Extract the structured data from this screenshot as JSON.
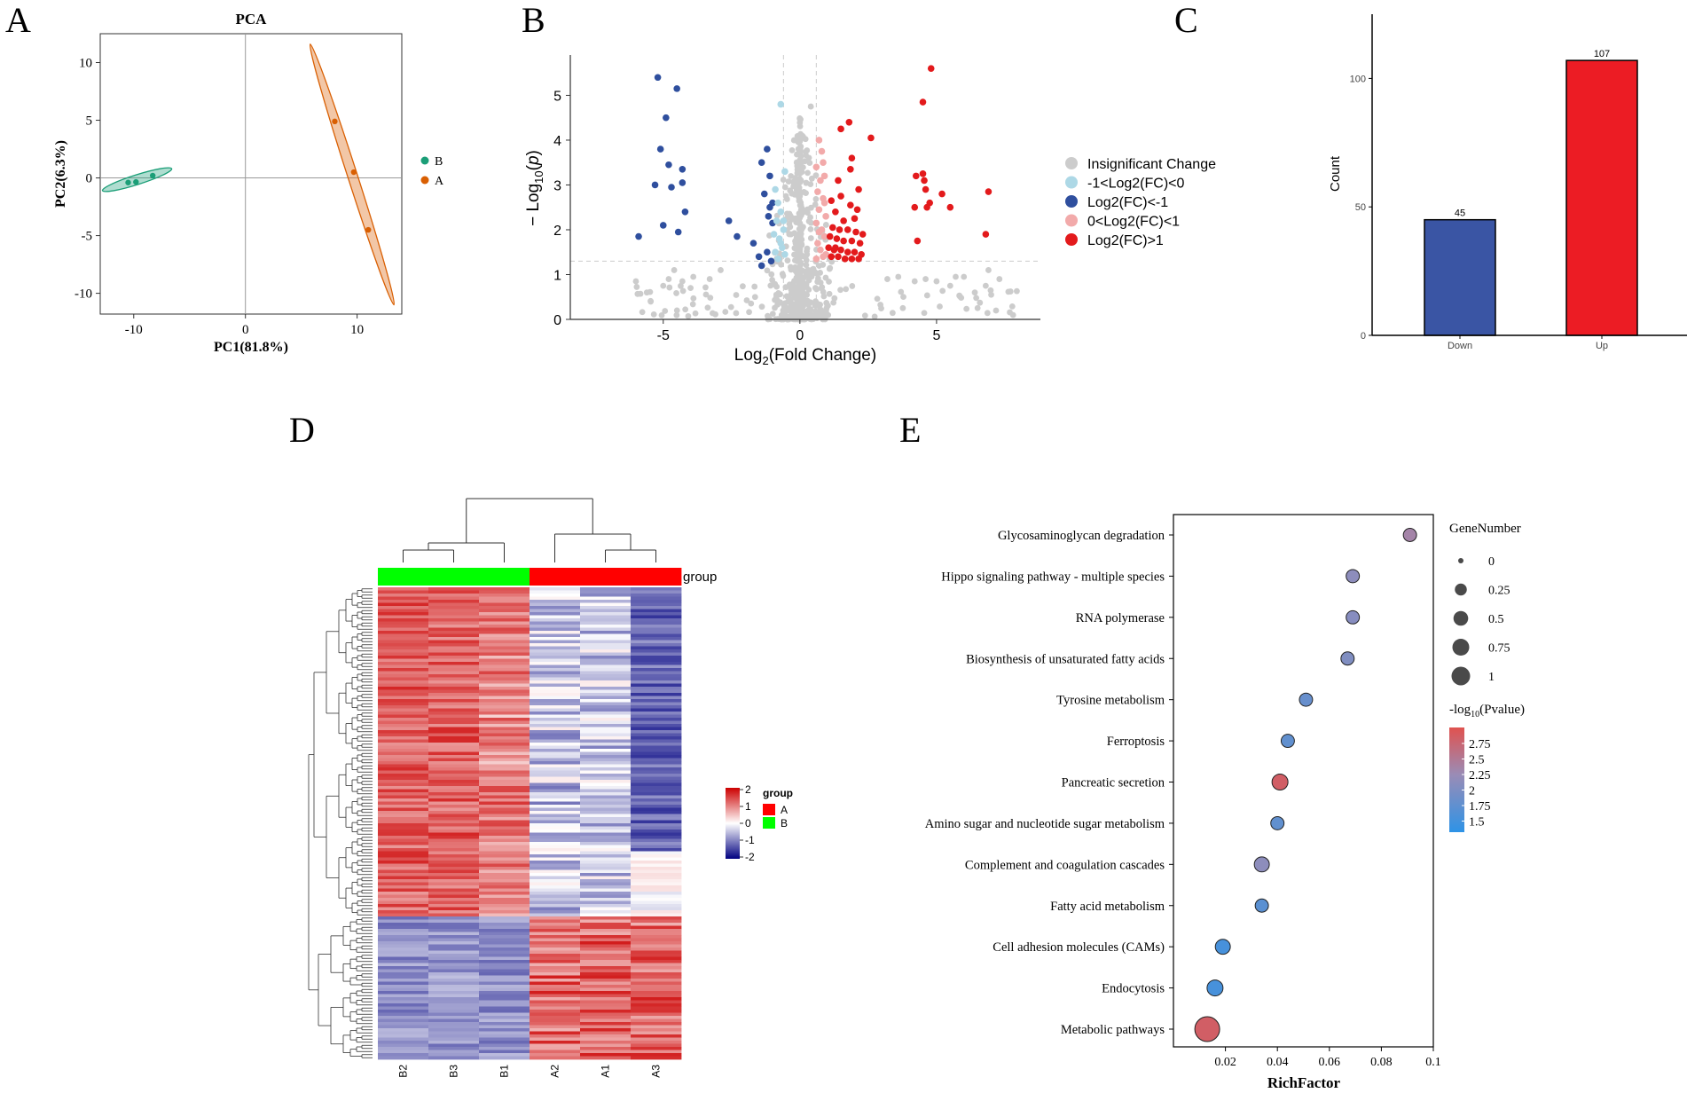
{
  "panel_labels": [
    "A",
    "B",
    "C",
    "D",
    "E"
  ],
  "chart_data": [
    {
      "id": "A",
      "type": "scatter",
      "title": "PCA",
      "xlabel": "PC1(81.8%)",
      "ylabel": "PC2(6.3%)",
      "xlim": [
        -13,
        14
      ],
      "ylim": [
        -11.8,
        12.5
      ],
      "xticks": [
        -10,
        0,
        10
      ],
      "yticks": [
        10,
        5,
        0,
        -5,
        -10
      ],
      "xtick_labels": [
        "-10",
        "0",
        "10"
      ],
      "ytick_labels": [
        "10",
        "5",
        "0",
        "-5",
        "-10"
      ],
      "legend": [
        {
          "name": "B",
          "color": "#1b9e77"
        },
        {
          "name": "A",
          "color": "#d95f02"
        }
      ],
      "series": [
        {
          "name": "B",
          "color": "#1b9e77",
          "points": [
            [
              -10.5,
              -0.4
            ],
            [
              -9.8,
              -0.35
            ],
            [
              -8.3,
              0.2
            ]
          ],
          "ellipse": [
            [
              -12.8,
              -1.1
            ],
            [
              -6.6,
              0.8
            ]
          ]
        },
        {
          "name": "A",
          "color": "#d95f02",
          "points": [
            [
              8,
              4.9
            ],
            [
              9.7,
              0.5
            ],
            [
              11,
              -4.5
            ]
          ],
          "ellipse": [
            [
              5.8,
              11.6
            ],
            [
              13.3,
              -11
            ]
          ]
        }
      ]
    },
    {
      "id": "B",
      "type": "scatter",
      "title": "",
      "xlabel": "Log2(Fold Change)",
      "ylabel": "- Log10(p)",
      "xlim": [
        -8.4,
        8.8
      ],
      "ylim": [
        0,
        5.9
      ],
      "xticks": [
        -5,
        0,
        5
      ],
      "yticks": [
        0,
        1,
        2,
        3,
        4,
        5
      ],
      "thresholds": {
        "x": [
          -0.6,
          0.6
        ],
        "y": 1.3
      },
      "legend": [
        {
          "name": "Insignificant Change",
          "color": "#cccccc"
        },
        {
          "name": "-1<Log2(FC)<0",
          "color": "#add8e6"
        },
        {
          "name": "Log2(FC)<-1",
          "color": "#2f4f9e"
        },
        {
          "name": "0<Log2(FC)<1",
          "color": "#f2aaaa"
        },
        {
          "name": "Log2(FC)>1",
          "color": "#e31a1c"
        }
      ],
      "series": [
        {
          "name": "Log2(FC)<-1",
          "color": "#2f4f9e",
          "points": [
            [
              -5.2,
              5.4
            ],
            [
              -4.5,
              5.15
            ],
            [
              -4.9,
              4.5
            ],
            [
              -5.1,
              3.8
            ],
            [
              -4.3,
              3.35
            ],
            [
              -4.8,
              3.45
            ],
            [
              -5.3,
              3.0
            ],
            [
              -4.7,
              2.95
            ],
            [
              -4.3,
              3.05
            ],
            [
              -4.2,
              2.4
            ],
            [
              -5.0,
              2.1
            ],
            [
              -4.45,
              1.95
            ],
            [
              -5.9,
              1.85
            ],
            [
              -2.6,
              2.2
            ],
            [
              -2.3,
              1.85
            ],
            [
              -1.2,
              3.8
            ],
            [
              -1.4,
              3.5
            ],
            [
              -1.1,
              3.2
            ],
            [
              -1.3,
              2.8
            ],
            [
              -1.1,
              2.5
            ],
            [
              -1.0,
              2.6
            ],
            [
              -1.7,
              1.7
            ],
            [
              -1.5,
              1.4
            ],
            [
              -1.2,
              1.5
            ],
            [
              -1.05,
              1.3
            ],
            [
              -1.4,
              1.2
            ],
            [
              -1.0,
              2.15
            ],
            [
              -1.15,
              2.3
            ]
          ]
        },
        {
          "name": "-1<Log2(FC)<0",
          "color": "#add8e6",
          "points": [
            [
              -0.7,
              4.8
            ],
            [
              -0.55,
              3.3
            ],
            [
              -0.9,
              2.9
            ],
            [
              -0.8,
              2.6
            ],
            [
              -0.7,
              2.4
            ],
            [
              -0.85,
              2.2
            ],
            [
              -0.6,
              2.0
            ],
            [
              -0.75,
              1.8
            ],
            [
              -0.65,
              1.6
            ],
            [
              -0.9,
              1.5
            ],
            [
              -0.55,
              1.45
            ],
            [
              -0.8,
              1.35
            ],
            [
              -0.7,
              1.7
            ],
            [
              -0.6,
              2.2
            ],
            [
              -0.95,
              1.9
            ]
          ]
        },
        {
          "name": "0<Log2(FC)<1",
          "color": "#f2aaaa",
          "points": [
            [
              0.7,
              4.0
            ],
            [
              0.8,
              3.75
            ],
            [
              0.85,
              3.5
            ],
            [
              0.6,
              3.4
            ],
            [
              0.75,
              3.1
            ],
            [
              0.9,
              3.2
            ],
            [
              0.65,
              2.85
            ],
            [
              0.85,
              2.7
            ],
            [
              0.7,
              2.45
            ],
            [
              0.95,
              2.3
            ],
            [
              0.6,
              2.15
            ],
            [
              0.8,
              2.0
            ],
            [
              0.9,
              1.85
            ],
            [
              0.65,
              1.7
            ],
            [
              0.75,
              1.55
            ],
            [
              0.95,
              1.45
            ],
            [
              0.6,
              1.35
            ],
            [
              0.85,
              1.4
            ],
            [
              0.7,
              1.95
            ],
            [
              0.9,
              2.6
            ]
          ]
        },
        {
          "name": "Log2(FC)>1",
          "color": "#e31a1c",
          "points": [
            [
              4.8,
              5.6
            ],
            [
              4.5,
              4.85
            ],
            [
              4.5,
              3.25
            ],
            [
              4.55,
              3.1
            ],
            [
              4.25,
              3.2
            ],
            [
              4.6,
              2.9
            ],
            [
              4.75,
              2.6
            ],
            [
              4.2,
              2.5
            ],
            [
              4.65,
              2.5
            ],
            [
              5.2,
              2.8
            ],
            [
              5.5,
              2.5
            ],
            [
              6.9,
              2.85
            ],
            [
              6.8,
              1.9
            ],
            [
              4.3,
              1.75
            ],
            [
              1.8,
              4.4
            ],
            [
              1.5,
              4.25
            ],
            [
              2.6,
              4.05
            ],
            [
              1.9,
              3.6
            ],
            [
              1.85,
              3.35
            ],
            [
              1.4,
              3.1
            ],
            [
              2.15,
              2.9
            ],
            [
              1.5,
              2.75
            ],
            [
              1.15,
              2.65
            ],
            [
              1.85,
              2.55
            ],
            [
              2.1,
              2.45
            ],
            [
              1.3,
              2.4
            ],
            [
              1.6,
              2.2
            ],
            [
              2.0,
              2.25
            ],
            [
              1.2,
              2.05
            ],
            [
              1.45,
              2.0
            ],
            [
              1.75,
              2.0
            ],
            [
              2.05,
              1.95
            ],
            [
              2.3,
              1.9
            ],
            [
              1.1,
              1.85
            ],
            [
              1.35,
              1.8
            ],
            [
              1.6,
              1.75
            ],
            [
              1.9,
              1.75
            ],
            [
              2.2,
              1.7
            ],
            [
              1.05,
              1.6
            ],
            [
              1.25,
              1.55
            ],
            [
              1.5,
              1.55
            ],
            [
              1.75,
              1.5
            ],
            [
              2.0,
              1.5
            ],
            [
              2.25,
              1.45
            ],
            [
              1.15,
              1.4
            ],
            [
              1.4,
              1.4
            ],
            [
              1.65,
              1.35
            ],
            [
              1.9,
              1.35
            ],
            [
              2.15,
              1.35
            ],
            [
              1.3,
              1.6
            ]
          ]
        }
      ]
    },
    {
      "id": "C",
      "type": "bar",
      "categories": [
        "Down",
        "Up"
      ],
      "values": [
        45,
        107
      ],
      "data_labels": [
        "45",
        "107"
      ],
      "colors": [
        "#3a55a4",
        "#ec1c24"
      ],
      "title": "",
      "xlabel": "",
      "ylabel": "Count",
      "ylim": [
        0,
        125
      ],
      "yticks": [
        0,
        50,
        100
      ],
      "ytick_labels": [
        "0",
        "50",
        "100"
      ]
    },
    {
      "id": "D",
      "type": "heatmap",
      "title": "",
      "columns": [
        "B2",
        "B3",
        "B1",
        "A2",
        "A1",
        "A3"
      ],
      "column_groups": [
        "B",
        "B",
        "B",
        "A",
        "A",
        "A"
      ],
      "group_track_label": "group",
      "legend_title": "group",
      "groups": [
        {
          "name": "A",
          "color": "#ff0000"
        },
        {
          "name": "B",
          "color": "#00ff00"
        }
      ],
      "color_scale": {
        "min": -2,
        "max": 2,
        "ticks": [
          "2",
          "1",
          "0",
          "-1",
          "-2"
        ],
        "low": "#000080",
        "mid": "#ffffff",
        "high": "#cc0000"
      },
      "n_rows": 152,
      "cluster_split_row": 106,
      "row_pattern": "rows 1-106 high in B (B2,B3,B1 ~ +0.8 to +1.5) and low in A (~ -0.5 to -1.8); rows 107-152 low in B (~ -0.9) and high in A (~ +1.2)"
    },
    {
      "id": "E",
      "type": "scatter",
      "title": "",
      "xlabel": "RichFactor",
      "ylabel": "",
      "xlim": [
        0.0,
        0.1
      ],
      "xticks": [
        0.02,
        0.04,
        0.06,
        0.08,
        0.1
      ],
      "xtick_labels": [
        "0.02",
        "0.04",
        "0.06",
        "0.08",
        "0.1"
      ],
      "size_legend_title": "GeneNumber",
      "size_legend": [
        "0",
        "0.25",
        "0.5",
        "0.75",
        "1"
      ],
      "color_legend_title": "-log10(Pvalue)",
      "color_legend_ticks": [
        "2.75",
        "2.5",
        "2.25",
        "2",
        "1.75",
        "1.5"
      ],
      "color_range": [
        1.4,
        2.95
      ],
      "pathways": [
        {
          "term": "Glycosaminoglycan degradation",
          "rich_factor": 0.091,
          "neg_log10_p": 2.35,
          "gene_number": 0.12
        },
        {
          "term": "Hippo signaling pathway - multiple species",
          "rich_factor": 0.069,
          "neg_log10_p": 2.15,
          "gene_number": 0.12
        },
        {
          "term": "RNA polymerase",
          "rich_factor": 0.069,
          "neg_log10_p": 2.1,
          "gene_number": 0.12
        },
        {
          "term": "Biosynthesis of unsaturated fatty acids",
          "rich_factor": 0.067,
          "neg_log10_p": 2.05,
          "gene_number": 0.12
        },
        {
          "term": "Tyrosine metabolism",
          "rich_factor": 0.051,
          "neg_log10_p": 1.85,
          "gene_number": 0.12
        },
        {
          "term": "Ferroptosis",
          "rich_factor": 0.044,
          "neg_log10_p": 1.8,
          "gene_number": 0.12
        },
        {
          "term": "Pancreatic secretion",
          "rich_factor": 0.041,
          "neg_log10_p": 2.8,
          "gene_number": 0.25
        },
        {
          "term": "Amino sugar and nucleotide sugar metabolism",
          "rich_factor": 0.04,
          "neg_log10_p": 1.8,
          "gene_number": 0.12
        },
        {
          "term": "Complement and coagulation cascades",
          "rich_factor": 0.034,
          "neg_log10_p": 2.15,
          "gene_number": 0.2
        },
        {
          "term": "Fatty acid metabolism",
          "rich_factor": 0.034,
          "neg_log10_p": 1.75,
          "gene_number": 0.12
        },
        {
          "term": "Cell adhesion molecules (CAMs)",
          "rich_factor": 0.019,
          "neg_log10_p": 1.6,
          "gene_number": 0.2
        },
        {
          "term": "Endocytosis",
          "rich_factor": 0.016,
          "neg_log10_p": 1.6,
          "gene_number": 0.25
        },
        {
          "term": "Metabolic pathways",
          "rich_factor": 0.013,
          "neg_log10_p": 2.8,
          "gene_number": 1.0
        }
      ]
    }
  ]
}
